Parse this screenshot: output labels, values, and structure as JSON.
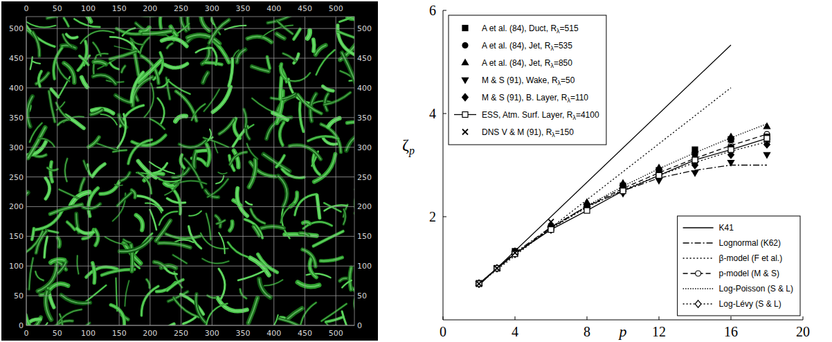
{
  "chart_data": [
    {
      "type": "image",
      "xlim": [
        0,
        530
      ],
      "ylim": [
        0,
        520
      ],
      "xticks": [
        0,
        50,
        100,
        150,
        200,
        250,
        300,
        350,
        400,
        450,
        500
      ],
      "yticks": [
        0,
        50,
        100,
        150,
        200,
        250,
        300,
        350,
        400,
        450,
        500
      ],
      "grid": true
    },
    {
      "type": "scatter",
      "xlabel": "p",
      "ylabel": "ζp",
      "xlim": [
        0,
        20
      ],
      "ylim": [
        0,
        6
      ],
      "xticks": [
        0,
        4,
        8,
        12,
        16,
        20
      ],
      "yticks": [
        2,
        4,
        6
      ],
      "legend": "upper left",
      "series": [
        {
          "name": "A et al. (84), Duct, Rλ=515",
          "type": "scatter",
          "marker": "square",
          "line_style": "none",
          "color": "#000000",
          "x": [
            2,
            3,
            4,
            6,
            8,
            10,
            12,
            14,
            16,
            18
          ],
          "values": [
            0.71,
            1.0,
            1.33,
            1.78,
            2.2,
            2.6,
            2.9,
            3.3,
            3.5,
            3.55
          ]
        },
        {
          "name": "A et al. (84), Jet, Rλ=535",
          "type": "scatter",
          "marker": "circle",
          "line_style": "none",
          "color": "#000000",
          "x": [
            2,
            3,
            4,
            6,
            8,
            10,
            12,
            14,
            16,
            18
          ],
          "values": [
            0.7,
            1.0,
            1.3,
            1.78,
            2.2,
            2.55,
            2.85,
            3.2,
            3.35,
            3.5
          ]
        },
        {
          "name": "A et al. (84), Jet, Rλ=850",
          "type": "scatter",
          "marker": "triangle-up",
          "line_style": "none",
          "color": "#000000",
          "x": [
            2,
            3,
            4,
            6,
            8,
            10,
            12,
            14,
            16,
            18
          ],
          "values": [
            0.71,
            1.0,
            1.33,
            1.85,
            2.28,
            2.65,
            2.95,
            3.28,
            3.55,
            3.75
          ]
        },
        {
          "name": "M & S (91), Wake, Rλ=50",
          "type": "scatter",
          "marker": "triangle-down",
          "line_style": "none",
          "color": "#000000",
          "x": [
            2,
            3,
            4,
            6,
            8,
            10,
            12,
            14,
            16,
            18
          ],
          "values": [
            0.7,
            1.0,
            1.28,
            1.75,
            2.15,
            2.45,
            2.7,
            2.85,
            3.05,
            3.2
          ]
        },
        {
          "name": "M & S (91), B. Layer, Rλ=110",
          "type": "scatter",
          "marker": "diamond",
          "line_style": "none",
          "color": "#000000",
          "x": [
            2,
            3,
            4,
            6,
            8,
            10,
            12,
            14,
            16,
            18
          ],
          "values": [
            0.7,
            1.0,
            1.28,
            1.75,
            2.15,
            2.5,
            2.75,
            3.0,
            3.2,
            3.4
          ]
        },
        {
          "name": "ESS, Atm. Surf. Layer, Rλ=4100",
          "type": "scatter",
          "marker": "square-open",
          "line_style": "solid",
          "color": "#000000",
          "x": [
            2,
            3,
            4,
            6,
            8,
            10,
            12,
            14,
            16,
            18
          ],
          "values": [
            0.7,
            1.0,
            1.28,
            1.75,
            2.12,
            2.5,
            2.8,
            3.1,
            3.3,
            3.52
          ]
        },
        {
          "name": "DNS V & M (91), Rλ=150",
          "type": "scatter",
          "marker": "x",
          "line_style": "none",
          "color": "#000000",
          "x": [
            2,
            3,
            4,
            6
          ],
          "values": [
            0.7,
            1.0,
            1.3,
            1.9
          ]
        },
        {
          "name": "K41",
          "type": "line",
          "marker": "none",
          "line_style": "solid",
          "color": "#000000",
          "x": [
            2,
            16
          ],
          "values": [
            0.67,
            5.33
          ]
        },
        {
          "name": "Lognormal (K62)",
          "type": "line",
          "marker": "none",
          "line_style": "dash-dot",
          "color": "#000000",
          "x": [
            2,
            4,
            6,
            8,
            10,
            12,
            14,
            16,
            18
          ],
          "values": [
            0.7,
            1.3,
            1.8,
            2.2,
            2.5,
            2.75,
            2.9,
            3.0,
            3.0
          ]
        },
        {
          "name": "β-model (F et al.)",
          "type": "line",
          "marker": "none",
          "line_style": "dotted",
          "color": "#000000",
          "x": [
            2,
            16
          ],
          "values": [
            0.7,
            4.5
          ]
        },
        {
          "name": "p-model (M & S)",
          "type": "line",
          "marker": "circle-open",
          "line_style": "dashed",
          "color": "#000000",
          "x": [
            2,
            4,
            6,
            8,
            10,
            12,
            14,
            16,
            18
          ],
          "values": [
            0.7,
            1.28,
            1.78,
            2.2,
            2.55,
            2.85,
            3.13,
            3.38,
            3.6
          ]
        },
        {
          "name": "Log-Poisson (S & L)",
          "type": "line",
          "marker": "none",
          "line_style": "densely-dotted",
          "color": "#000000",
          "x": [
            2,
            4,
            6,
            8,
            10,
            12,
            14,
            16,
            18
          ],
          "values": [
            0.7,
            1.28,
            1.78,
            2.21,
            2.59,
            2.93,
            3.24,
            3.53,
            3.8
          ]
        },
        {
          "name": "Log-Lévy (S & L)",
          "type": "line",
          "marker": "diamond-open",
          "line_style": "dotted",
          "color": "#000000",
          "x": [
            2,
            4,
            6,
            8,
            10,
            12,
            14,
            16,
            18
          ],
          "values": [
            0.7,
            1.28,
            1.77,
            2.18,
            2.52,
            2.8,
            3.05,
            3.27,
            3.45
          ]
        }
      ]
    }
  ]
}
